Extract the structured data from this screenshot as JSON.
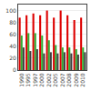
{
  "chart_data": {
    "type": "bar",
    "categories": [
      "1990",
      "1995",
      "1997",
      "2000",
      "2002",
      "2005",
      "2007",
      "2008",
      "2009",
      "2010"
    ],
    "series": [
      {
        "color": "#dd0000",
        "values": [
          88,
          92,
          95,
          92,
          100,
          88,
          100,
          92,
          84,
          88
        ]
      },
      {
        "color": "#33aa33",
        "values": [
          58,
          62,
          62,
          58,
          50,
          42,
          38,
          38,
          35,
          38
        ]
      },
      {
        "color": "#404040",
        "values": [
          38,
          32,
          35,
          28,
          30,
          28,
          30,
          28,
          26,
          30
        ]
      }
    ],
    "ylim": [
      0,
      110
    ],
    "yticks": [
      0,
      20,
      40,
      60,
      80,
      100
    ],
    "grid": true
  }
}
